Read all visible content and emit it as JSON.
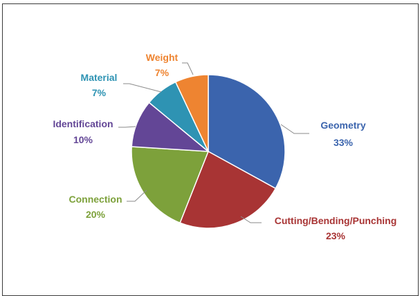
{
  "chart_data": {
    "type": "pie",
    "title": "",
    "slices": [
      {
        "label": "Geometry",
        "pct_label": "33%",
        "value": 33,
        "color": "#3B64AD"
      },
      {
        "label": "Cutting/Bending/Punching",
        "pct_label": "23%",
        "value": 23,
        "color": "#A83434"
      },
      {
        "label": "Connection",
        "pct_label": "20%",
        "value": 20,
        "color": "#7DA13B"
      },
      {
        "label": "Identification",
        "pct_label": "10%",
        "value": 10,
        "color": "#634696"
      },
      {
        "label": "Material",
        "pct_label": "7%",
        "value": 7,
        "color": "#2E93B3"
      },
      {
        "label": "Weight",
        "pct_label": "7%",
        "value": 7,
        "color": "#EE8431"
      }
    ],
    "start": "12 o'clock",
    "direction": "clockwise",
    "legend": "none",
    "data_labels": "outside with leader lines"
  }
}
